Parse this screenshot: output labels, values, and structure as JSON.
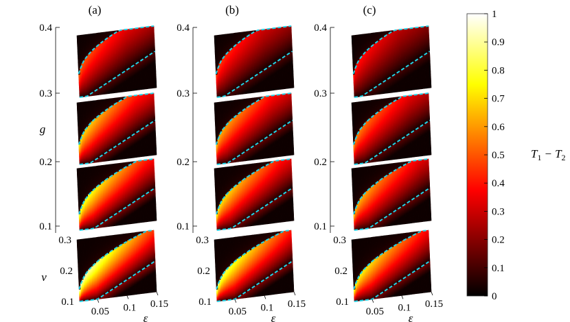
{
  "chart_data": {
    "type": "heatmap",
    "panels": [
      {
        "label": "(a)",
        "brightness": 1.0
      },
      {
        "label": "(b)",
        "brightness": 0.9
      },
      {
        "label": "(c)",
        "brightness": 0.8
      }
    ],
    "slices_g": [
      0.1,
      0.2,
      0.3,
      0.4
    ],
    "g_axis": {
      "label": "g",
      "ticks": [
        "0.1",
        "0.2",
        "0.3",
        "0.4"
      ],
      "range": [
        0.1,
        0.4
      ]
    },
    "v_axis": {
      "label": "v",
      "ticks": [
        "0.1",
        "0.2",
        "0.3"
      ],
      "range": [
        0.1,
        0.3
      ]
    },
    "eps_axis": {
      "label": "ε",
      "ticks": [
        "0.05",
        "0.1",
        "0.15"
      ],
      "range": [
        0.02,
        0.15
      ]
    },
    "colorbar": {
      "label": "T₁ − T₂",
      "label_main": "T",
      "label_sub1": "1",
      "label_op": "−",
      "label_sub2": "2",
      "range": [
        0,
        1
      ],
      "ticks": [
        "0",
        "0.1",
        "0.2",
        "0.3",
        "0.4",
        "0.5",
        "0.6",
        "0.7",
        "0.8",
        "0.9",
        "1"
      ],
      "colormap": "hot"
    },
    "boundary_color": "#22d3e6",
    "slice_peak_values": [
      0.95,
      0.8,
      0.7,
      0.5
    ]
  }
}
